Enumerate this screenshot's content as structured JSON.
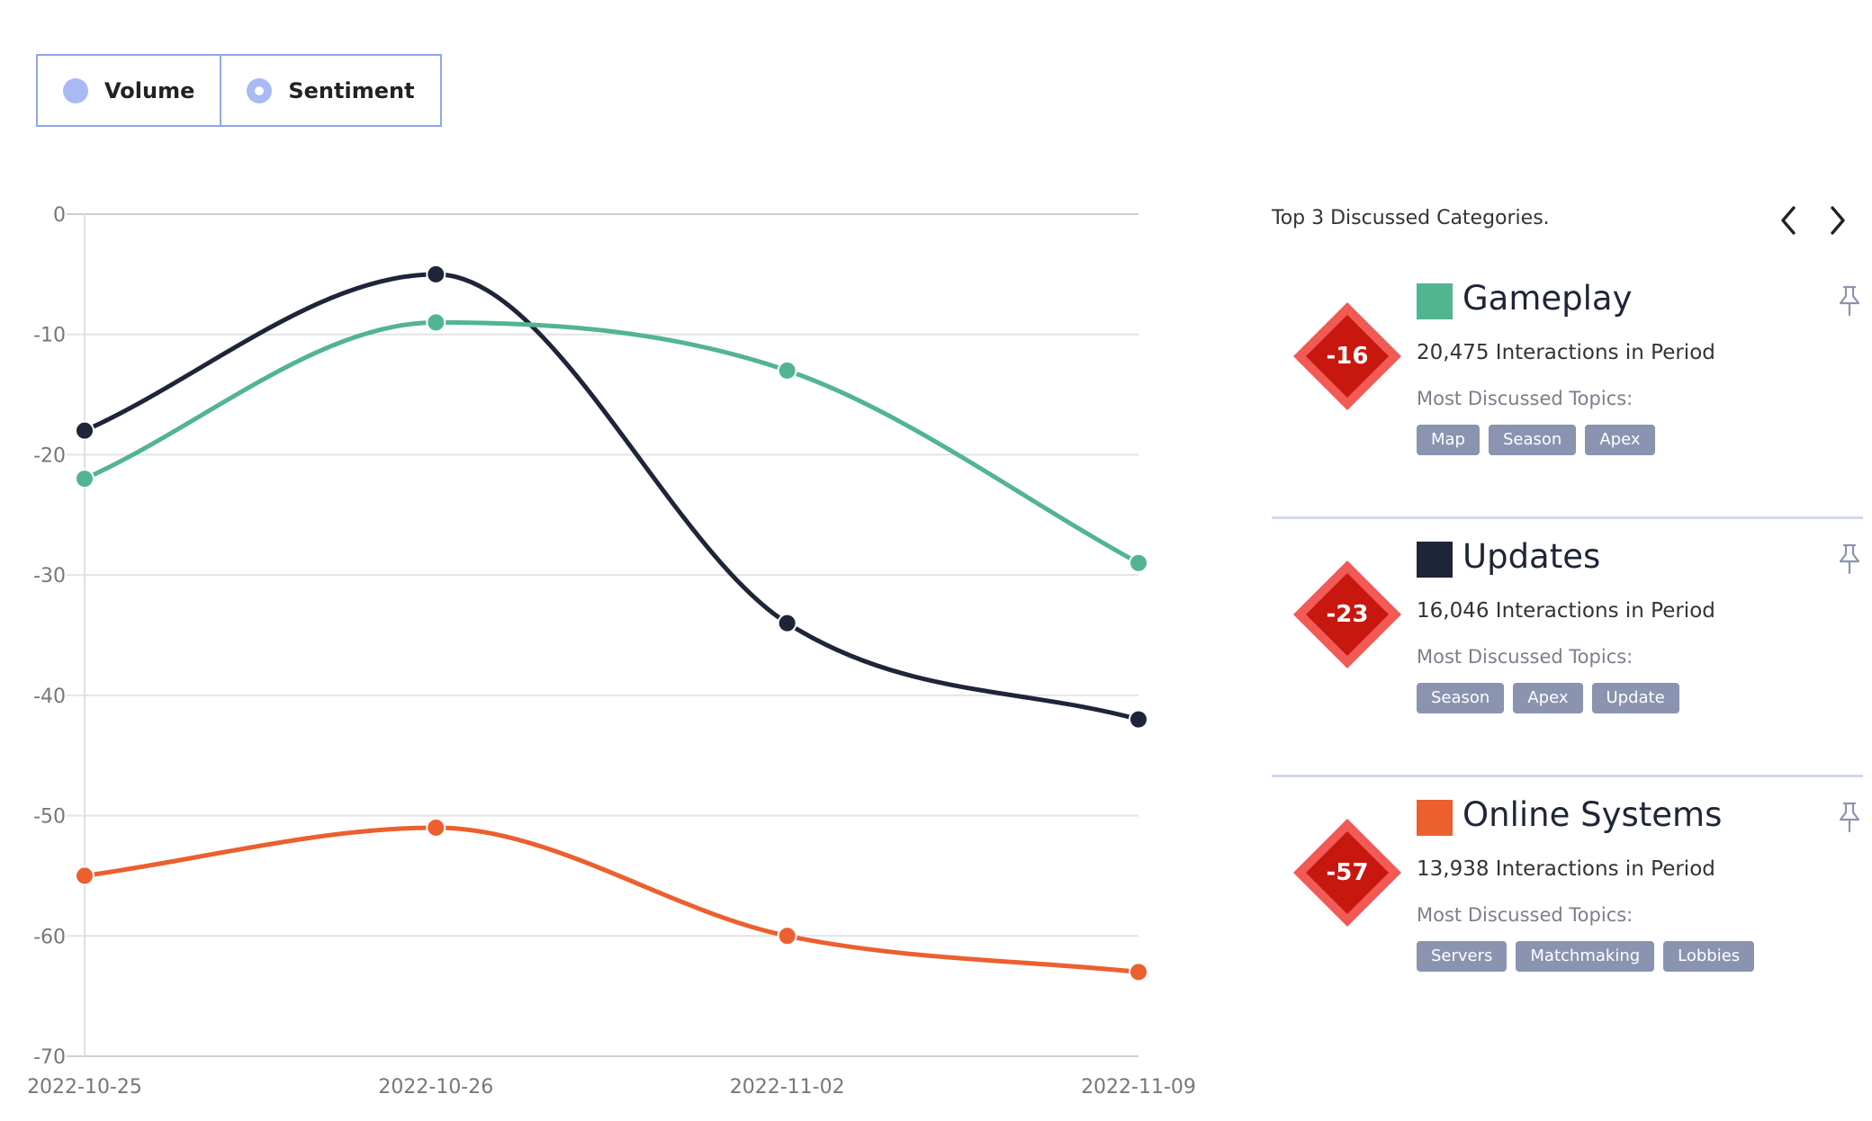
{
  "toggle": {
    "options": [
      {
        "label": "Volume",
        "selected": false
      },
      {
        "label": "Sentiment",
        "selected": true
      }
    ]
  },
  "chart_data": {
    "type": "line",
    "x": [
      "2022-10-25",
      "2022-10-26",
      "2022-11-02",
      "2022-11-09"
    ],
    "ylim": [
      -70,
      0
    ],
    "yticks": [
      0,
      -10,
      -20,
      -30,
      -40,
      -50,
      -60,
      -70
    ],
    "grid": true,
    "title": "",
    "xlabel": "",
    "ylabel": "",
    "series": [
      {
        "name": "Updates",
        "color": "#1e2538",
        "values": [
          -18,
          -5,
          -34,
          -42
        ]
      },
      {
        "name": "Gameplay",
        "color": "#52b58f",
        "values": [
          -22,
          -9,
          -13,
          -29
        ]
      },
      {
        "name": "Online Systems",
        "color": "#ec5f2e",
        "values": [
          -55,
          -51,
          -60,
          -63
        ]
      }
    ]
  },
  "panel": {
    "title": "Top 3 Discussed Categories.",
    "prev_icon": "chevron-left-icon",
    "next_icon": "chevron-right-icon",
    "categories": [
      {
        "name": "Gameplay",
        "color": "#52b58f",
        "score": "-16",
        "interactions": "20,475 Interactions in Period",
        "topics_label": "Most Discussed Topics:",
        "topics": [
          "Map",
          "Season",
          "Apex"
        ]
      },
      {
        "name": "Updates",
        "color": "#1e2538",
        "score": "-23",
        "interactions": "16,046 Interactions in Period",
        "topics_label": "Most Discussed Topics:",
        "topics": [
          "Season",
          "Apex",
          "Update"
        ]
      },
      {
        "name": "Online Systems",
        "color": "#ec5f2e",
        "score": "-57",
        "interactions": "13,938 Interactions in Period",
        "topics_label": "Most Discussed Topics:",
        "topics": [
          "Servers",
          "Matchmaking",
          "Lobbies"
        ]
      }
    ]
  }
}
